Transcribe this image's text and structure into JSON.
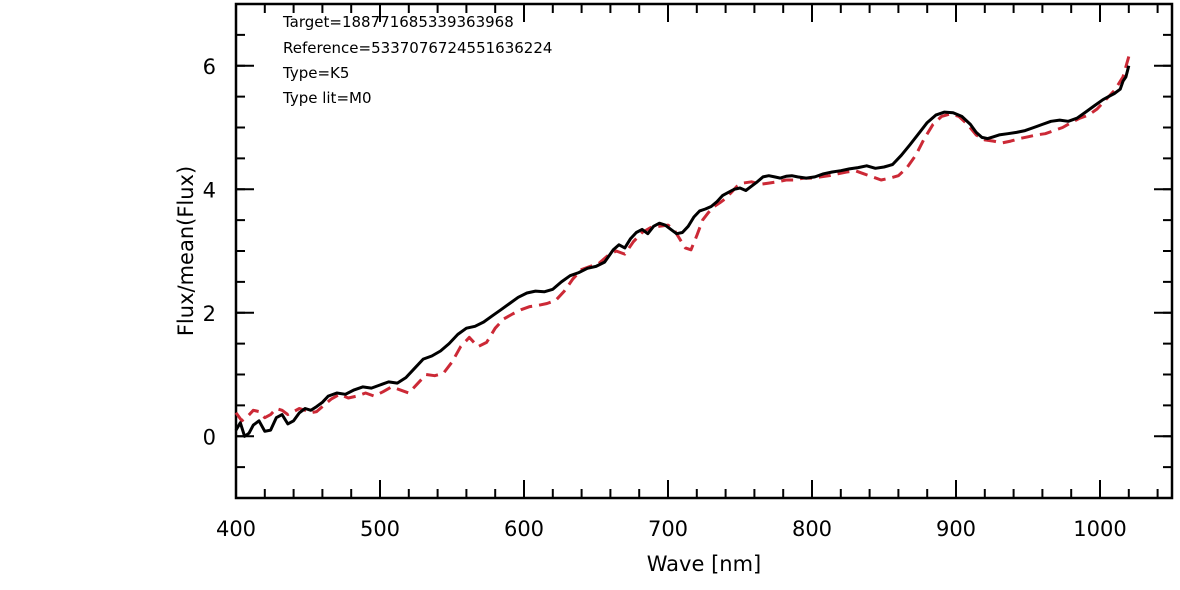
{
  "chart_data": {
    "type": "line",
    "xlabel": "Wave [nm]",
    "ylabel": "Flux/mean(Flux)",
    "xlim": [
      400,
      1050
    ],
    "ylim": [
      -1,
      7
    ],
    "x_ticks": [
      400,
      500,
      600,
      700,
      800,
      900,
      1000
    ],
    "y_ticks": [
      0,
      2,
      4,
      6
    ],
    "x_minor_step": 20,
    "y_minor_step": 0.5,
    "grid": false,
    "annotations": [
      "Target=188771685339363968",
      "Reference=5337076724551636224",
      "Type=K5",
      "Type lit=M0"
    ],
    "series": [
      {
        "style": "solid",
        "color": "#000000",
        "x": [
          400,
          403,
          406,
          409,
          412,
          416,
          420,
          424,
          428,
          432,
          436,
          440,
          444,
          448,
          452,
          456,
          460,
          464,
          470,
          476,
          482,
          488,
          494,
          500,
          506,
          512,
          518,
          524,
          530,
          536,
          542,
          548,
          554,
          560,
          566,
          572,
          578,
          584,
          590,
          596,
          602,
          608,
          614,
          620,
          626,
          632,
          638,
          644,
          650,
          656,
          662,
          666,
          670,
          674,
          678,
          682,
          686,
          690,
          694,
          698,
          702,
          706,
          710,
          714,
          718,
          722,
          726,
          730,
          734,
          738,
          742,
          746,
          750,
          754,
          758,
          762,
          766,
          770,
          774,
          778,
          782,
          786,
          790,
          796,
          802,
          808,
          814,
          820,
          826,
          832,
          838,
          844,
          850,
          856,
          862,
          868,
          874,
          880,
          886,
          892,
          898,
          904,
          910,
          914,
          918,
          922,
          926,
          930,
          936,
          942,
          948,
          954,
          960,
          966,
          972,
          978,
          984,
          990,
          996,
          1002,
          1006,
          1010,
          1014,
          1016,
          1018,
          1020
        ],
        "y": [
          0.1,
          0.22,
          0.0,
          0.05,
          0.18,
          0.25,
          0.08,
          0.1,
          0.3,
          0.35,
          0.2,
          0.25,
          0.38,
          0.45,
          0.42,
          0.48,
          0.55,
          0.65,
          0.7,
          0.68,
          0.75,
          0.8,
          0.78,
          0.83,
          0.88,
          0.86,
          0.95,
          1.1,
          1.25,
          1.3,
          1.38,
          1.5,
          1.65,
          1.75,
          1.78,
          1.85,
          1.95,
          2.05,
          2.15,
          2.25,
          2.32,
          2.35,
          2.34,
          2.38,
          2.5,
          2.6,
          2.65,
          2.72,
          2.75,
          2.82,
          3.02,
          3.1,
          3.05,
          3.2,
          3.3,
          3.35,
          3.28,
          3.4,
          3.45,
          3.42,
          3.35,
          3.28,
          3.3,
          3.4,
          3.55,
          3.65,
          3.68,
          3.72,
          3.8,
          3.9,
          3.95,
          4.0,
          4.02,
          3.98,
          4.05,
          4.12,
          4.2,
          4.22,
          4.2,
          4.18,
          4.21,
          4.22,
          4.2,
          4.18,
          4.2,
          4.25,
          4.28,
          4.3,
          4.33,
          4.35,
          4.38,
          4.34,
          4.36,
          4.4,
          4.55,
          4.72,
          4.9,
          5.08,
          5.2,
          5.25,
          5.24,
          5.18,
          5.05,
          4.92,
          4.84,
          4.82,
          4.85,
          4.88,
          4.9,
          4.92,
          4.95,
          5.0,
          5.05,
          5.1,
          5.12,
          5.1,
          5.15,
          5.25,
          5.35,
          5.45,
          5.5,
          5.55,
          5.62,
          5.75,
          5.82,
          6.0
        ]
      },
      {
        "style": "dashed",
        "color": "#cc2936",
        "x": [
          400,
          404,
          408,
          412,
          416,
          420,
          424,
          428,
          432,
          436,
          440,
          444,
          448,
          452,
          456,
          460,
          466,
          472,
          478,
          484,
          490,
          496,
          502,
          508,
          514,
          520,
          526,
          532,
          538,
          544,
          550,
          556,
          562,
          568,
          574,
          580,
          586,
          592,
          598,
          604,
          610,
          616,
          622,
          628,
          634,
          640,
          646,
          652,
          658,
          664,
          670,
          676,
          682,
          688,
          694,
          700,
          704,
          708,
          712,
          716,
          720,
          724,
          728,
          732,
          736,
          740,
          744,
          748,
          752,
          758,
          764,
          770,
          776,
          782,
          788,
          794,
          800,
          806,
          812,
          818,
          824,
          830,
          836,
          842,
          848,
          854,
          860,
          866,
          872,
          878,
          884,
          890,
          896,
          902,
          908,
          914,
          920,
          926,
          932,
          938,
          944,
          950,
          956,
          962,
          968,
          974,
          980,
          986,
          992,
          998,
          1004,
          1010,
          1016,
          1020
        ],
        "y": [
          0.38,
          0.25,
          0.32,
          0.42,
          0.4,
          0.3,
          0.35,
          0.45,
          0.42,
          0.35,
          0.4,
          0.45,
          0.42,
          0.38,
          0.4,
          0.48,
          0.6,
          0.68,
          0.62,
          0.65,
          0.7,
          0.65,
          0.72,
          0.8,
          0.75,
          0.7,
          0.85,
          1.0,
          0.98,
          1.02,
          1.2,
          1.45,
          1.6,
          1.45,
          1.52,
          1.75,
          1.9,
          1.98,
          2.05,
          2.1,
          2.12,
          2.15,
          2.2,
          2.35,
          2.55,
          2.7,
          2.75,
          2.8,
          2.92,
          3.0,
          2.95,
          3.15,
          3.3,
          3.38,
          3.4,
          3.42,
          3.35,
          3.2,
          3.05,
          3.02,
          3.25,
          3.5,
          3.62,
          3.72,
          3.78,
          3.85,
          3.95,
          4.05,
          4.1,
          4.12,
          4.08,
          4.1,
          4.12,
          4.15,
          4.15,
          4.18,
          4.18,
          4.2,
          4.22,
          4.25,
          4.28,
          4.3,
          4.25,
          4.2,
          4.15,
          4.18,
          4.22,
          4.35,
          4.55,
          4.82,
          5.05,
          5.18,
          5.22,
          5.18,
          5.05,
          4.88,
          4.8,
          4.78,
          4.75,
          4.78,
          4.82,
          4.85,
          4.88,
          4.9,
          4.95,
          5.0,
          5.08,
          5.15,
          5.2,
          5.3,
          5.45,
          5.6,
          5.82,
          6.15
        ]
      }
    ]
  }
}
